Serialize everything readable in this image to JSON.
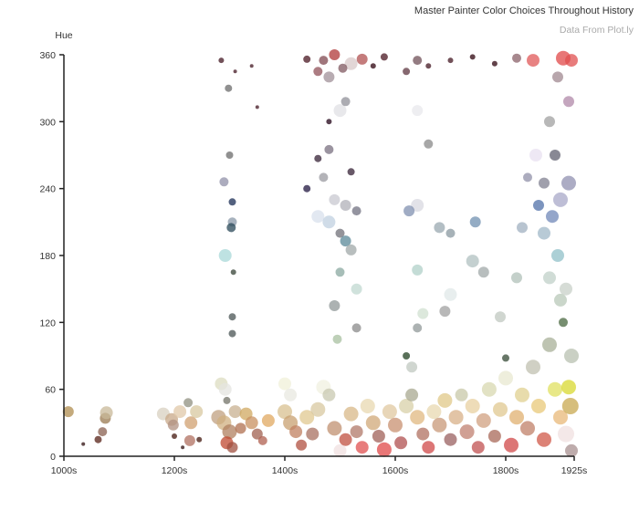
{
  "header": {
    "title": "Master Painter Color Choices Throughout History",
    "subtitle": "Data From Plot.ly"
  },
  "chart_data": {
    "type": "scatter",
    "title": "Master Painter Color Choices Throughout History",
    "subtitle": "Data From Plot.ly",
    "xlabel": "",
    "ylabel": "Hue",
    "x_ticks": [
      {
        "label": "1000s",
        "value": 1000
      },
      {
        "label": "1200s",
        "value": 1200
      },
      {
        "label": "1400s",
        "value": 1400
      },
      {
        "label": "1600s",
        "value": 1600
      },
      {
        "label": "1800s",
        "value": 1800
      },
      {
        "label": "1925s",
        "value": 1925
      }
    ],
    "y_ticks": [
      0,
      60,
      120,
      180,
      240,
      300,
      360
    ],
    "xlim": [
      1000,
      1925
    ],
    "ylim": [
      0,
      360
    ],
    "grid": false,
    "legend": "none",
    "encoding": {
      "x": "decade",
      "y": "hue",
      "size": "color frequency",
      "color": "actual paint color"
    },
    "points": [
      {
        "x": 1008,
        "y": 40,
        "r": 6,
        "c": "#b08e50"
      },
      {
        "x": 1035,
        "y": 11,
        "r": 2,
        "c": "#5a4040"
      },
      {
        "x": 1062,
        "y": 15,
        "r": 4,
        "c": "#7a5048"
      },
      {
        "x": 1070,
        "y": 22,
        "r": 5,
        "c": "#8a6050"
      },
      {
        "x": 1075,
        "y": 34,
        "r": 6,
        "c": "#9a7a50"
      },
      {
        "x": 1077,
        "y": 39,
        "r": 7,
        "c": "#c8b898"
      },
      {
        "x": 1180,
        "y": 38,
        "r": 7,
        "c": "#d8d0c0"
      },
      {
        "x": 1195,
        "y": 33,
        "r": 7,
        "c": "#c8a888"
      },
      {
        "x": 1198,
        "y": 28,
        "r": 6,
        "c": "#b09080"
      },
      {
        "x": 1200,
        "y": 18,
        "r": 3,
        "c": "#6a4840"
      },
      {
        "x": 1210,
        "y": 40,
        "r": 7,
        "c": "#e0c8a8"
      },
      {
        "x": 1215,
        "y": 8,
        "r": 2,
        "c": "#5a4040"
      },
      {
        "x": 1225,
        "y": 48,
        "r": 5,
        "c": "#909080"
      },
      {
        "x": 1230,
        "y": 30,
        "r": 7,
        "c": "#d0a070"
      },
      {
        "x": 1228,
        "y": 14,
        "r": 6,
        "c": "#b07060"
      },
      {
        "x": 1240,
        "y": 40,
        "r": 7,
        "c": "#d8c8a0"
      },
      {
        "x": 1245,
        "y": 15,
        "r": 3,
        "c": "#6a4840"
      },
      {
        "x": 1285,
        "y": 65,
        "r": 7,
        "c": "#dcdcc0"
      },
      {
        "x": 1292,
        "y": 60,
        "r": 7,
        "c": "#e4e4e0"
      },
      {
        "x": 1295,
        "y": 50,
        "r": 4,
        "c": "#909088"
      },
      {
        "x": 1280,
        "y": 35,
        "r": 8,
        "c": "#c0a080"
      },
      {
        "x": 1290,
        "y": 30,
        "r": 8,
        "c": "#d0b080"
      },
      {
        "x": 1300,
        "y": 22,
        "r": 8,
        "c": "#b08060"
      },
      {
        "x": 1295,
        "y": 12,
        "r": 7,
        "c": "#c04830"
      },
      {
        "x": 1305,
        "y": 8,
        "r": 6,
        "c": "#a05040"
      },
      {
        "x": 1310,
        "y": 40,
        "r": 7,
        "c": "#c8b090"
      },
      {
        "x": 1320,
        "y": 25,
        "r": 6,
        "c": "#b07050"
      },
      {
        "x": 1330,
        "y": 38,
        "r": 7,
        "c": "#d0a860"
      },
      {
        "x": 1340,
        "y": 30,
        "r": 7,
        "c": "#c89060"
      },
      {
        "x": 1350,
        "y": 20,
        "r": 6,
        "c": "#a06050"
      },
      {
        "x": 1360,
        "y": 14,
        "r": 5,
        "c": "#b06050"
      },
      {
        "x": 1370,
        "y": 32,
        "r": 7,
        "c": "#e0a860"
      },
      {
        "x": 1292,
        "y": 180,
        "r": 7,
        "c": "#a8d8d8"
      },
      {
        "x": 1290,
        "y": 246,
        "r": 5,
        "c": "#9090a8"
      },
      {
        "x": 1300,
        "y": 270,
        "r": 4,
        "c": "#8a8a8a"
      },
      {
        "x": 1298,
        "y": 330,
        "r": 4,
        "c": "#8a8a8a"
      },
      {
        "x": 1305,
        "y": 210,
        "r": 5,
        "c": "#8a98a8"
      },
      {
        "x": 1303,
        "y": 205,
        "r": 5,
        "c": "#2a4858"
      },
      {
        "x": 1305,
        "y": 228,
        "r": 4,
        "c": "#4a5878"
      },
      {
        "x": 1307,
        "y": 165,
        "r": 3,
        "c": "#606a60"
      },
      {
        "x": 1305,
        "y": 125,
        "r": 4,
        "c": "#707878"
      },
      {
        "x": 1305,
        "y": 110,
        "r": 4,
        "c": "#707878"
      },
      {
        "x": 1285,
        "y": 355,
        "r": 3,
        "c": "#6a4850"
      },
      {
        "x": 1310,
        "y": 345,
        "r": 2,
        "c": "#6a4850"
      },
      {
        "x": 1340,
        "y": 350,
        "r": 2,
        "c": "#6a4850"
      },
      {
        "x": 1350,
        "y": 313,
        "r": 2,
        "c": "#6a4850"
      },
      {
        "x": 1400,
        "y": 65,
        "r": 7,
        "c": "#f0f0d8"
      },
      {
        "x": 1410,
        "y": 55,
        "r": 7,
        "c": "#e8e8e0"
      },
      {
        "x": 1400,
        "y": 40,
        "r": 8,
        "c": "#d8c090"
      },
      {
        "x": 1410,
        "y": 30,
        "r": 8,
        "c": "#c8a070"
      },
      {
        "x": 1420,
        "y": 22,
        "r": 7,
        "c": "#c08060"
      },
      {
        "x": 1430,
        "y": 10,
        "r": 6,
        "c": "#b05040"
      },
      {
        "x": 1440,
        "y": 35,
        "r": 8,
        "c": "#e0c890"
      },
      {
        "x": 1450,
        "y": 20,
        "r": 7,
        "c": "#a87060"
      },
      {
        "x": 1460,
        "y": 42,
        "r": 8,
        "c": "#d8c8a0"
      },
      {
        "x": 1470,
        "y": 62,
        "r": 8,
        "c": "#f0f0e0"
      },
      {
        "x": 1480,
        "y": 55,
        "r": 7,
        "c": "#c8c8b0"
      },
      {
        "x": 1490,
        "y": 25,
        "r": 8,
        "c": "#c09070"
      },
      {
        "x": 1500,
        "y": 5,
        "r": 7,
        "c": "#f0e0e0"
      },
      {
        "x": 1510,
        "y": 15,
        "r": 7,
        "c": "#c05040"
      },
      {
        "x": 1520,
        "y": 38,
        "r": 8,
        "c": "#d8b888"
      },
      {
        "x": 1530,
        "y": 22,
        "r": 7,
        "c": "#b07868"
      },
      {
        "x": 1540,
        "y": 8,
        "r": 7,
        "c": "#e05050"
      },
      {
        "x": 1550,
        "y": 45,
        "r": 8,
        "c": "#e8d8b0"
      },
      {
        "x": 1560,
        "y": 30,
        "r": 8,
        "c": "#d0a878"
      },
      {
        "x": 1570,
        "y": 18,
        "r": 7,
        "c": "#a06058"
      },
      {
        "x": 1580,
        "y": 6,
        "r": 8,
        "c": "#e04848"
      },
      {
        "x": 1590,
        "y": 40,
        "r": 8,
        "c": "#e0c8a0"
      },
      {
        "x": 1600,
        "y": 28,
        "r": 8,
        "c": "#c89070"
      },
      {
        "x": 1610,
        "y": 12,
        "r": 7,
        "c": "#b05050"
      },
      {
        "x": 1620,
        "y": 45,
        "r": 8,
        "c": "#d8d0a8"
      },
      {
        "x": 1630,
        "y": 55,
        "r": 7,
        "c": "#a8a890"
      },
      {
        "x": 1640,
        "y": 35,
        "r": 8,
        "c": "#e0b880"
      },
      {
        "x": 1650,
        "y": 20,
        "r": 7,
        "c": "#b07060"
      },
      {
        "x": 1660,
        "y": 8,
        "r": 7,
        "c": "#d04848"
      },
      {
        "x": 1670,
        "y": 40,
        "r": 8,
        "c": "#e8d8b0"
      },
      {
        "x": 1680,
        "y": 28,
        "r": 8,
        "c": "#c89878"
      },
      {
        "x": 1690,
        "y": 50,
        "r": 8,
        "c": "#e0c888"
      },
      {
        "x": 1700,
        "y": 15,
        "r": 7,
        "c": "#9a6060"
      },
      {
        "x": 1710,
        "y": 35,
        "r": 8,
        "c": "#d8b088"
      },
      {
        "x": 1720,
        "y": 55,
        "r": 7,
        "c": "#c8c8a8"
      },
      {
        "x": 1730,
        "y": 22,
        "r": 8,
        "c": "#c08070"
      },
      {
        "x": 1740,
        "y": 45,
        "r": 8,
        "c": "#e8d0a0"
      },
      {
        "x": 1750,
        "y": 8,
        "r": 7,
        "c": "#c05050"
      },
      {
        "x": 1760,
        "y": 32,
        "r": 8,
        "c": "#d0a080"
      },
      {
        "x": 1770,
        "y": 60,
        "r": 8,
        "c": "#d8d8b0"
      },
      {
        "x": 1780,
        "y": 18,
        "r": 7,
        "c": "#a86858"
      },
      {
        "x": 1790,
        "y": 42,
        "r": 8,
        "c": "#e0c890"
      },
      {
        "x": 1800,
        "y": 70,
        "r": 8,
        "c": "#e8e8d0"
      },
      {
        "x": 1810,
        "y": 10,
        "r": 8,
        "c": "#d04848"
      },
      {
        "x": 1820,
        "y": 35,
        "r": 8,
        "c": "#e0b070"
      },
      {
        "x": 1830,
        "y": 55,
        "r": 8,
        "c": "#e0d090"
      },
      {
        "x": 1840,
        "y": 25,
        "r": 8,
        "c": "#c08068"
      },
      {
        "x": 1850,
        "y": 80,
        "r": 8,
        "c": "#c0c0b0"
      },
      {
        "x": 1860,
        "y": 45,
        "r": 8,
        "c": "#e8c878"
      },
      {
        "x": 1870,
        "y": 15,
        "r": 8,
        "c": "#d05848"
      },
      {
        "x": 1880,
        "y": 100,
        "r": 8,
        "c": "#a8b098"
      },
      {
        "x": 1890,
        "y": 60,
        "r": 8,
        "c": "#e0e060"
      },
      {
        "x": 1900,
        "y": 35,
        "r": 8,
        "c": "#e8b878"
      },
      {
        "x": 1910,
        "y": 20,
        "r": 9,
        "c": "#f0e0e0"
      },
      {
        "x": 1915,
        "y": 62,
        "r": 8,
        "c": "#d8d830"
      },
      {
        "x": 1918,
        "y": 45,
        "r": 9,
        "c": "#c8a850"
      },
      {
        "x": 1920,
        "y": 5,
        "r": 7,
        "c": "#a89090"
      },
      {
        "x": 1920,
        "y": 90,
        "r": 8,
        "c": "#b8c0b0"
      },
      {
        "x": 1905,
        "y": 120,
        "r": 5,
        "c": "#4a6840"
      },
      {
        "x": 1900,
        "y": 140,
        "r": 7,
        "c": "#b8c8b8"
      },
      {
        "x": 1910,
        "y": 150,
        "r": 7,
        "c": "#c8d0c8"
      },
      {
        "x": 1880,
        "y": 160,
        "r": 7,
        "c": "#c0d0c8"
      },
      {
        "x": 1895,
        "y": 180,
        "r": 7,
        "c": "#90c0c8"
      },
      {
        "x": 1870,
        "y": 200,
        "r": 7,
        "c": "#a0b8c8"
      },
      {
        "x": 1885,
        "y": 215,
        "r": 7,
        "c": "#7088b8"
      },
      {
        "x": 1860,
        "y": 225,
        "r": 6,
        "c": "#5070a8"
      },
      {
        "x": 1900,
        "y": 230,
        "r": 8,
        "c": "#a8a8c8"
      },
      {
        "x": 1915,
        "y": 245,
        "r": 8,
        "c": "#9090b0"
      },
      {
        "x": 1870,
        "y": 245,
        "r": 6,
        "c": "#808090"
      },
      {
        "x": 1855,
        "y": 270,
        "r": 7,
        "c": "#e8e0f0"
      },
      {
        "x": 1890,
        "y": 270,
        "r": 6,
        "c": "#606070"
      },
      {
        "x": 1880,
        "y": 300,
        "r": 6,
        "c": "#a0a0a0"
      },
      {
        "x": 1915,
        "y": 318,
        "r": 6,
        "c": "#b088a8"
      },
      {
        "x": 1895,
        "y": 340,
        "r": 6,
        "c": "#a08890"
      },
      {
        "x": 1905,
        "y": 357,
        "r": 8,
        "c": "#e04848"
      },
      {
        "x": 1920,
        "y": 355,
        "r": 7,
        "c": "#e05050"
      },
      {
        "x": 1850,
        "y": 355,
        "r": 7,
        "c": "#e05858"
      },
      {
        "x": 1820,
        "y": 357,
        "r": 5,
        "c": "#8a6068"
      },
      {
        "x": 1780,
        "y": 352,
        "r": 3,
        "c": "#5a3840"
      },
      {
        "x": 1740,
        "y": 358,
        "r": 3,
        "c": "#5a3840"
      },
      {
        "x": 1700,
        "y": 355,
        "r": 3,
        "c": "#6a4850"
      },
      {
        "x": 1660,
        "y": 350,
        "r": 3,
        "c": "#6a4850"
      },
      {
        "x": 1640,
        "y": 355,
        "r": 5,
        "c": "#705058"
      },
      {
        "x": 1620,
        "y": 345,
        "r": 4,
        "c": "#806068"
      },
      {
        "x": 1580,
        "y": 358,
        "r": 4,
        "c": "#704850"
      },
      {
        "x": 1560,
        "y": 350,
        "r": 3,
        "c": "#5a3840"
      },
      {
        "x": 1540,
        "y": 356,
        "r": 6,
        "c": "#b05050"
      },
      {
        "x": 1520,
        "y": 352,
        "r": 7,
        "c": "#d8c8c8"
      },
      {
        "x": 1505,
        "y": 348,
        "r": 5,
        "c": "#805860"
      },
      {
        "x": 1490,
        "y": 360,
        "r": 6,
        "c": "#b03838"
      },
      {
        "x": 1480,
        "y": 340,
        "r": 6,
        "c": "#a09098"
      },
      {
        "x": 1470,
        "y": 355,
        "r": 5,
        "c": "#804850"
      },
      {
        "x": 1460,
        "y": 345,
        "r": 5,
        "c": "#905058"
      },
      {
        "x": 1440,
        "y": 356,
        "r": 4,
        "c": "#704850"
      },
      {
        "x": 1500,
        "y": 310,
        "r": 7,
        "c": "#e0e0e4"
      },
      {
        "x": 1510,
        "y": 318,
        "r": 5,
        "c": "#909098"
      },
      {
        "x": 1480,
        "y": 300,
        "r": 3,
        "c": "#503848"
      },
      {
        "x": 1640,
        "y": 310,
        "r": 6,
        "c": "#e8e8ec"
      },
      {
        "x": 1480,
        "y": 275,
        "r": 5,
        "c": "#7a7080"
      },
      {
        "x": 1460,
        "y": 267,
        "r": 4,
        "c": "#605060"
      },
      {
        "x": 1520,
        "y": 255,
        "r": 4,
        "c": "#605060"
      },
      {
        "x": 1470,
        "y": 250,
        "r": 5,
        "c": "#9a9aa0"
      },
      {
        "x": 1490,
        "y": 230,
        "r": 6,
        "c": "#c8c8d0"
      },
      {
        "x": 1440,
        "y": 240,
        "r": 4,
        "c": "#504868"
      },
      {
        "x": 1510,
        "y": 225,
        "r": 6,
        "c": "#b0b0b8"
      },
      {
        "x": 1530,
        "y": 220,
        "r": 5,
        "c": "#707080"
      },
      {
        "x": 1460,
        "y": 215,
        "r": 7,
        "c": "#d8e0ec"
      },
      {
        "x": 1480,
        "y": 210,
        "r": 7,
        "c": "#c0d0e0"
      },
      {
        "x": 1500,
        "y": 200,
        "r": 5,
        "c": "#707078"
      },
      {
        "x": 1510,
        "y": 193,
        "r": 6,
        "c": "#5a8898"
      },
      {
        "x": 1520,
        "y": 185,
        "r": 6,
        "c": "#a0a8a8"
      },
      {
        "x": 1500,
        "y": 165,
        "r": 5,
        "c": "#8aa8a0"
      },
      {
        "x": 1530,
        "y": 150,
        "r": 6,
        "c": "#c0d8d0"
      },
      {
        "x": 1490,
        "y": 135,
        "r": 6,
        "c": "#909898"
      },
      {
        "x": 1530,
        "y": 115,
        "r": 5,
        "c": "#8a8a8a"
      },
      {
        "x": 1495,
        "y": 105,
        "r": 5,
        "c": "#a8c0a0"
      },
      {
        "x": 1640,
        "y": 225,
        "r": 7,
        "c": "#d8d8e0"
      },
      {
        "x": 1625,
        "y": 220,
        "r": 6,
        "c": "#8090b0"
      },
      {
        "x": 1660,
        "y": 280,
        "r": 5,
        "c": "#8a8a8a"
      },
      {
        "x": 1680,
        "y": 205,
        "r": 6,
        "c": "#9aa8b0"
      },
      {
        "x": 1700,
        "y": 200,
        "r": 5,
        "c": "#8a98a0"
      },
      {
        "x": 1745,
        "y": 210,
        "r": 6,
        "c": "#7090b0"
      },
      {
        "x": 1640,
        "y": 167,
        "r": 6,
        "c": "#b0d0c8"
      },
      {
        "x": 1740,
        "y": 175,
        "r": 7,
        "c": "#b0c0c0"
      },
      {
        "x": 1760,
        "y": 165,
        "r": 6,
        "c": "#a0a8a8"
      },
      {
        "x": 1700,
        "y": 145,
        "r": 7,
        "c": "#e0e8e8"
      },
      {
        "x": 1690,
        "y": 130,
        "r": 6,
        "c": "#a0a0a0"
      },
      {
        "x": 1650,
        "y": 128,
        "r": 6,
        "c": "#d0e0d0"
      },
      {
        "x": 1640,
        "y": 115,
        "r": 5,
        "c": "#909898"
      },
      {
        "x": 1630,
        "y": 80,
        "r": 6,
        "c": "#c0c8c0"
      },
      {
        "x": 1620,
        "y": 90,
        "r": 4,
        "c": "#506850"
      },
      {
        "x": 1800,
        "y": 88,
        "r": 4,
        "c": "#607060"
      },
      {
        "x": 1790,
        "y": 125,
        "r": 6,
        "c": "#c0c8c0"
      },
      {
        "x": 1820,
        "y": 160,
        "r": 6,
        "c": "#b0c0b8"
      },
      {
        "x": 1830,
        "y": 205,
        "r": 6,
        "c": "#a0b0c0"
      },
      {
        "x": 1840,
        "y": 250,
        "r": 5,
        "c": "#9090a8"
      }
    ]
  }
}
